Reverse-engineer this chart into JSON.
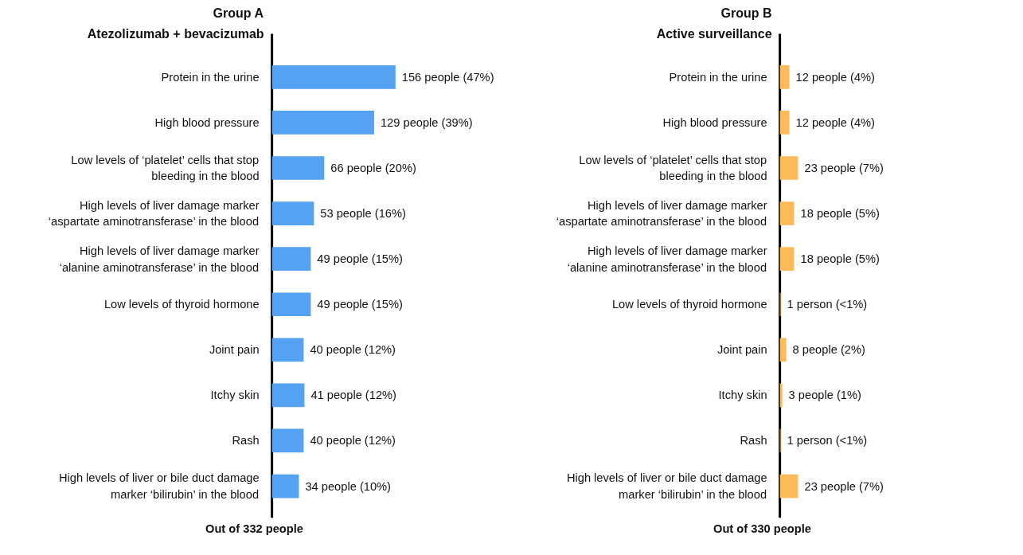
{
  "chart_data": [
    {
      "type": "bar",
      "orientation": "horizontal",
      "title": "Group A",
      "subtitle": "Atezolizumab + bevacizumab",
      "xlabel": "Out of 332 people",
      "categories": [
        "Protein in the urine",
        "High blood pressure",
        "Low levels of ‘platelet’ cells that stop bleeding in the blood",
        "High levels of liver damage marker ‘aspartate aminotransferase’ in the blood",
        "High levels of liver damage marker ‘alanine aminotransferase’ in the blood",
        "Low levels of thyroid hormone",
        "Joint pain",
        "Itchy skin",
        "Rash",
        "High levels of liver or bile duct damage marker ‘bilirubin’ in the blood"
      ],
      "values": [
        156,
        129,
        66,
        53,
        49,
        49,
        40,
        41,
        40,
        34
      ],
      "value_labels": [
        "156 people (47%)",
        "129 people (39%)",
        "66 people (20%)",
        "53 people (16%)",
        "49 people (15%)",
        "49 people (15%)",
        "40 people (12%)",
        "41 people (12%)",
        "40 people (12%)",
        "34 people (10%)"
      ],
      "color": "#55a2f2",
      "tick_labels": "y"
    },
    {
      "type": "bar",
      "orientation": "horizontal",
      "title": "Group B",
      "subtitle": "Active surveillance",
      "xlabel": "Out of 330 people",
      "categories": [
        "Protein in the urine",
        "High blood pressure",
        "Low levels of ‘platelet’ cells that stop bleeding in the blood",
        "High levels of liver damage marker ‘aspartate aminotransferase’ in the blood",
        "High levels of liver damage marker ‘alanine aminotransferase’ in the blood",
        "Low levels of thyroid hormone",
        "Joint pain",
        "Itchy skin",
        "Rash",
        "High levels of liver or bile duct damage marker ‘bilirubin’ in the blood"
      ],
      "values": [
        12,
        12,
        23,
        18,
        18,
        1,
        8,
        3,
        1,
        23
      ],
      "value_labels": [
        "12 people (4%)",
        "12 people (4%)",
        "23 people (7%)",
        "18 people (5%)",
        "18 people (5%)",
        "1 person (<1%)",
        "8 people (2%)",
        "3 people (1%)",
        "1 person (<1%)",
        "23 people (7%)"
      ],
      "color": "#ffbb5a",
      "tick_labels": "y"
    }
  ]
}
